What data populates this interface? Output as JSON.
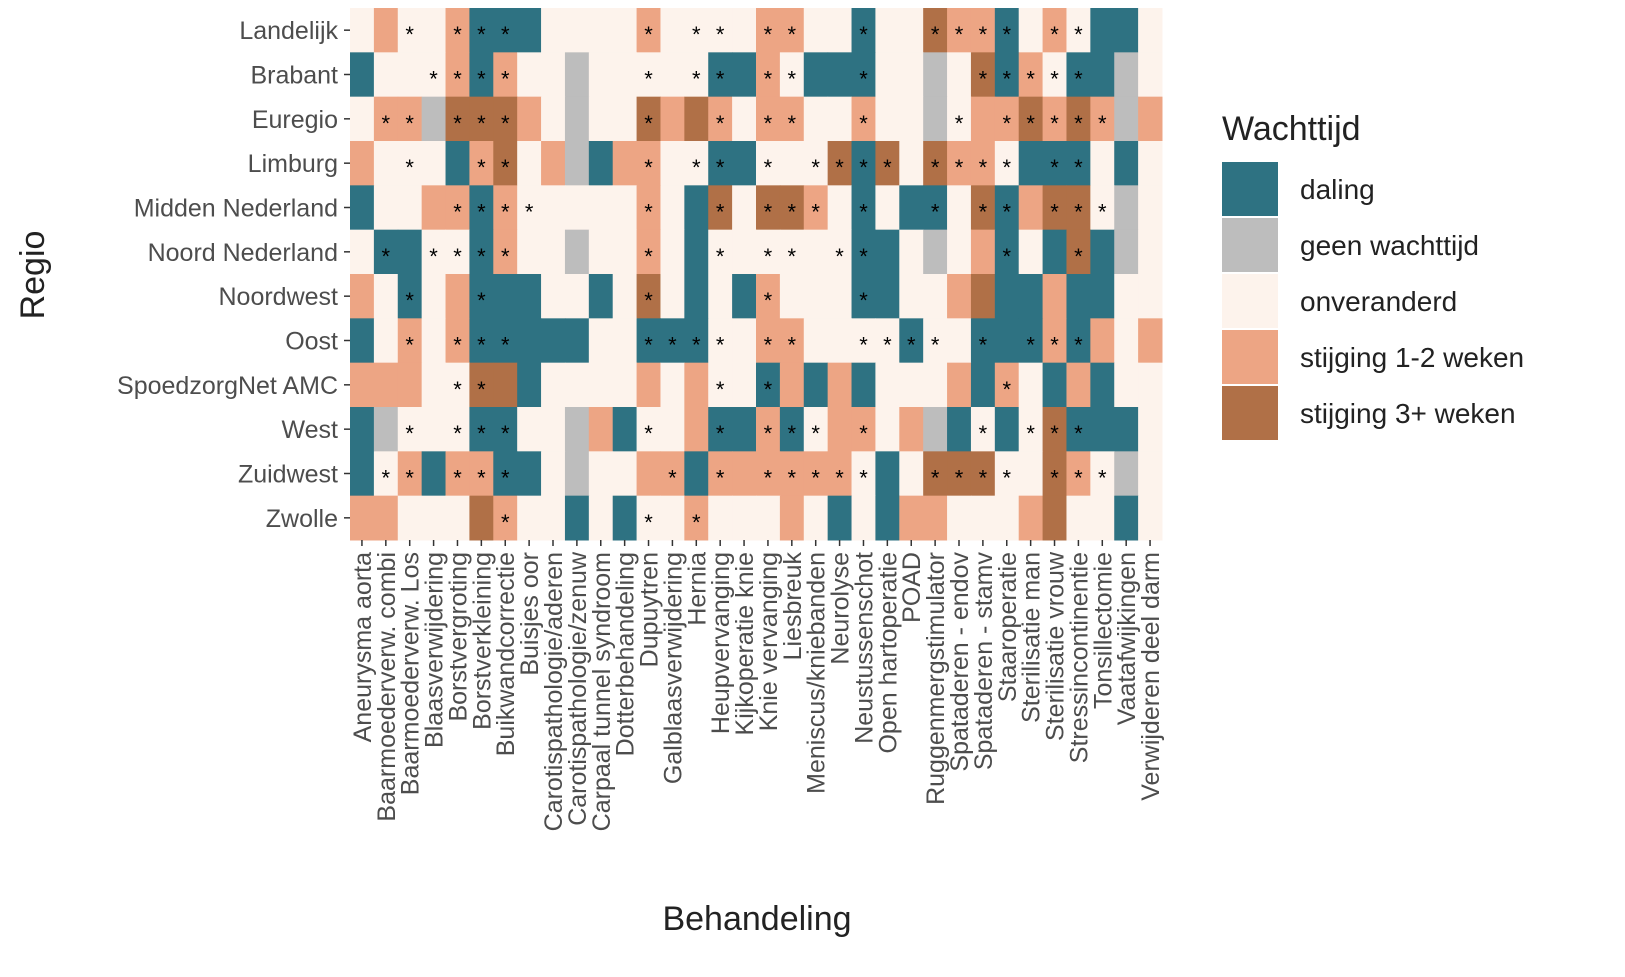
{
  "chart_data": {
    "type": "heatmap",
    "x_label": "Behandeling",
    "y_label": "Regio",
    "legend_title": "Wachttijd",
    "legend": [
      {
        "name": "daling",
        "color": "#2e7282"
      },
      {
        "name": "geen wachttijd",
        "color": "#bdbdbd"
      },
      {
        "name": "onveranderd",
        "color": "#fdf3ec"
      },
      {
        "name": "stijging 1-2 weken",
        "color": "#eda584"
      },
      {
        "name": "stijging 3+ weken",
        "color": "#b07047"
      }
    ],
    "marker": "*",
    "categories": [
      "Aneurysma aorta",
      "Baarmoederverw. combi",
      "Baarmoederverw. Los",
      "Blaasverwijdering",
      "Borstvergroting",
      "Borstverkleining",
      "Buikwandcorrectie",
      "Buisjes oor",
      "Carotispathologie/aderen",
      "Carotispathologie/zenuw",
      "Carpaal tunnel syndroom",
      "Dotterbehandeling",
      "Dupuytren",
      "Galblaasverwijdering",
      "Hernia",
      "Heupvervanging",
      "Kijkoperatie knie",
      "Knie vervanging",
      "Liesbreuk",
      "Meniscus/kniebanden",
      "Neurolyse",
      "Neustussenschot",
      "Open hartoperatie",
      "POAD",
      "Ruggenmergstimulator",
      "Spataderen - endov",
      "Spataderen - stamv",
      "Staaroperatie",
      "Sterilisatie man",
      "Sterilisatie vrouw",
      "Stressincontinentie",
      "Tonsillectomie",
      "Vaatafwijkingen",
      "Verwijderen deel darm"
    ],
    "rows": [
      "Landelijk",
      "Brabant",
      "Euregio",
      "Limburg",
      "Midden Nederland",
      "Noord Nederland",
      "Noordwest",
      "Oost",
      "SpoedzorgNet AMC",
      "West",
      "Zuidwest",
      "Zwolle"
    ],
    "cells": [
      [
        2,
        3,
        2,
        2,
        3,
        0,
        0,
        0,
        2,
        2,
        2,
        2,
        3,
        2,
        2,
        2,
        2,
        3,
        3,
        2,
        2,
        0,
        2,
        2,
        4,
        3,
        3,
        0,
        2,
        3,
        2,
        0,
        0,
        2
      ],
      [
        0,
        2,
        2,
        2,
        3,
        0,
        3,
        2,
        2,
        1,
        2,
        2,
        2,
        2,
        2,
        0,
        0,
        3,
        2,
        0,
        0,
        0,
        2,
        2,
        1,
        2,
        4,
        0,
        3,
        2,
        0,
        0,
        1,
        2
      ],
      [
        2,
        3,
        3,
        1,
        4,
        4,
        4,
        3,
        2,
        1,
        2,
        2,
        4,
        3,
        4,
        3,
        2,
        3,
        3,
        2,
        2,
        3,
        2,
        2,
        1,
        2,
        3,
        3,
        4,
        3,
        4,
        3,
        1,
        3
      ],
      [
        3,
        2,
        2,
        2,
        0,
        3,
        4,
        2,
        3,
        1,
        0,
        3,
        3,
        2,
        2,
        0,
        0,
        2,
        2,
        2,
        4,
        0,
        4,
        2,
        4,
        3,
        3,
        2,
        0,
        0,
        0,
        2,
        0,
        2
      ],
      [
        0,
        2,
        2,
        3,
        3,
        0,
        3,
        2,
        2,
        2,
        2,
        2,
        3,
        2,
        0,
        4,
        2,
        4,
        4,
        3,
        2,
        0,
        2,
        0,
        0,
        2,
        4,
        0,
        3,
        4,
        4,
        2,
        1,
        2
      ],
      [
        2,
        0,
        0,
        2,
        2,
        0,
        3,
        2,
        2,
        1,
        2,
        2,
        3,
        2,
        0,
        2,
        2,
        2,
        2,
        2,
        2,
        0,
        0,
        2,
        1,
        2,
        3,
        0,
        2,
        0,
        4,
        0,
        1,
        2
      ],
      [
        3,
        2,
        0,
        2,
        3,
        0,
        0,
        0,
        2,
        2,
        0,
        2,
        4,
        2,
        0,
        2,
        0,
        3,
        2,
        2,
        2,
        0,
        0,
        2,
        2,
        3,
        4,
        0,
        0,
        3,
        0,
        0,
        2,
        2
      ],
      [
        0,
        2,
        3,
        2,
        3,
        0,
        0,
        0,
        0,
        0,
        2,
        2,
        0,
        0,
        0,
        2,
        2,
        3,
        3,
        2,
        2,
        2,
        2,
        0,
        2,
        2,
        0,
        0,
        0,
        3,
        0,
        3,
        2,
        3
      ],
      [
        3,
        3,
        3,
        2,
        2,
        4,
        4,
        0,
        2,
        2,
        2,
        2,
        3,
        2,
        3,
        2,
        2,
        0,
        3,
        0,
        3,
        0,
        2,
        2,
        2,
        3,
        0,
        3,
        2,
        0,
        3,
        0,
        2,
        2
      ],
      [
        0,
        1,
        2,
        2,
        2,
        0,
        0,
        2,
        2,
        1,
        3,
        0,
        2,
        2,
        3,
        0,
        0,
        3,
        0,
        2,
        3,
        3,
        2,
        3,
        1,
        0,
        2,
        0,
        2,
        4,
        0,
        0,
        0,
        2
      ],
      [
        0,
        2,
        3,
        0,
        3,
        3,
        0,
        0,
        2,
        1,
        2,
        2,
        3,
        3,
        0,
        3,
        3,
        3,
        3,
        3,
        3,
        2,
        0,
        2,
        4,
        4,
        4,
        2,
        2,
        4,
        3,
        2,
        1,
        2
      ],
      [
        3,
        3,
        2,
        2,
        2,
        4,
        3,
        2,
        2,
        0,
        2,
        0,
        2,
        2,
        3,
        2,
        2,
        2,
        3,
        2,
        0,
        2,
        0,
        3,
        3,
        2,
        2,
        2,
        3,
        4,
        2,
        2,
        0,
        2
      ]
    ],
    "significant": [
      [
        0,
        0,
        1,
        0,
        1,
        1,
        1,
        0,
        0,
        0,
        0,
        0,
        1,
        0,
        1,
        1,
        0,
        1,
        1,
        0,
        0,
        1,
        0,
        0,
        1,
        1,
        1,
        1,
        0,
        1,
        1,
        0,
        0,
        0
      ],
      [
        0,
        0,
        0,
        1,
        1,
        1,
        1,
        0,
        0,
        0,
        0,
        0,
        1,
        0,
        1,
        1,
        0,
        1,
        1,
        0,
        0,
        1,
        0,
        0,
        0,
        0,
        1,
        1,
        1,
        1,
        1,
        0,
        0,
        0
      ],
      [
        0,
        1,
        1,
        0,
        1,
        1,
        1,
        0,
        0,
        0,
        0,
        0,
        1,
        0,
        0,
        1,
        0,
        1,
        1,
        0,
        0,
        1,
        0,
        0,
        0,
        1,
        0,
        1,
        1,
        1,
        1,
        1,
        0,
        0
      ],
      [
        0,
        0,
        1,
        0,
        0,
        1,
        1,
        0,
        0,
        0,
        0,
        0,
        1,
        0,
        1,
        1,
        0,
        1,
        0,
        1,
        1,
        1,
        1,
        0,
        1,
        1,
        1,
        1,
        0,
        1,
        1,
        0,
        0,
        0
      ],
      [
        0,
        0,
        0,
        0,
        1,
        1,
        1,
        1,
        0,
        0,
        0,
        0,
        1,
        0,
        0,
        1,
        0,
        1,
        1,
        1,
        0,
        1,
        0,
        0,
        1,
        0,
        1,
        1,
        0,
        1,
        1,
        1,
        0,
        0
      ],
      [
        0,
        1,
        0,
        1,
        1,
        1,
        1,
        0,
        0,
        0,
        0,
        0,
        1,
        0,
        0,
        1,
        0,
        1,
        1,
        0,
        1,
        1,
        0,
        0,
        0,
        0,
        0,
        1,
        0,
        0,
        1,
        0,
        0,
        0
      ],
      [
        0,
        0,
        1,
        0,
        0,
        1,
        0,
        0,
        0,
        0,
        0,
        0,
        1,
        0,
        0,
        0,
        0,
        1,
        0,
        0,
        0,
        1,
        0,
        0,
        0,
        0,
        0,
        0,
        0,
        0,
        0,
        0,
        0,
        0
      ],
      [
        0,
        0,
        1,
        0,
        1,
        1,
        1,
        0,
        0,
        0,
        0,
        0,
        1,
        1,
        1,
        1,
        0,
        1,
        1,
        0,
        0,
        1,
        1,
        1,
        1,
        0,
        1,
        0,
        1,
        1,
        1,
        0,
        0,
        0
      ],
      [
        0,
        0,
        0,
        0,
        1,
        1,
        0,
        0,
        0,
        0,
        0,
        0,
        0,
        0,
        0,
        1,
        0,
        1,
        0,
        0,
        0,
        0,
        0,
        0,
        0,
        0,
        0,
        1,
        0,
        0,
        0,
        0,
        0,
        0
      ],
      [
        0,
        0,
        1,
        0,
        1,
        1,
        1,
        0,
        0,
        0,
        0,
        0,
        1,
        0,
        0,
        1,
        0,
        1,
        1,
        1,
        0,
        1,
        0,
        0,
        0,
        0,
        1,
        0,
        1,
        1,
        1,
        0,
        0,
        0
      ],
      [
        0,
        1,
        1,
        0,
        1,
        1,
        1,
        0,
        0,
        0,
        0,
        0,
        0,
        1,
        0,
        1,
        0,
        1,
        1,
        1,
        1,
        1,
        0,
        0,
        1,
        1,
        1,
        1,
        0,
        1,
        1,
        1,
        0,
        0
      ],
      [
        0,
        0,
        0,
        0,
        0,
        0,
        1,
        0,
        0,
        0,
        0,
        0,
        1,
        0,
        1,
        0,
        0,
        0,
        0,
        0,
        0,
        0,
        0,
        0,
        0,
        0,
        0,
        0,
        0,
        0,
        0,
        0,
        0,
        0
      ]
    ]
  }
}
